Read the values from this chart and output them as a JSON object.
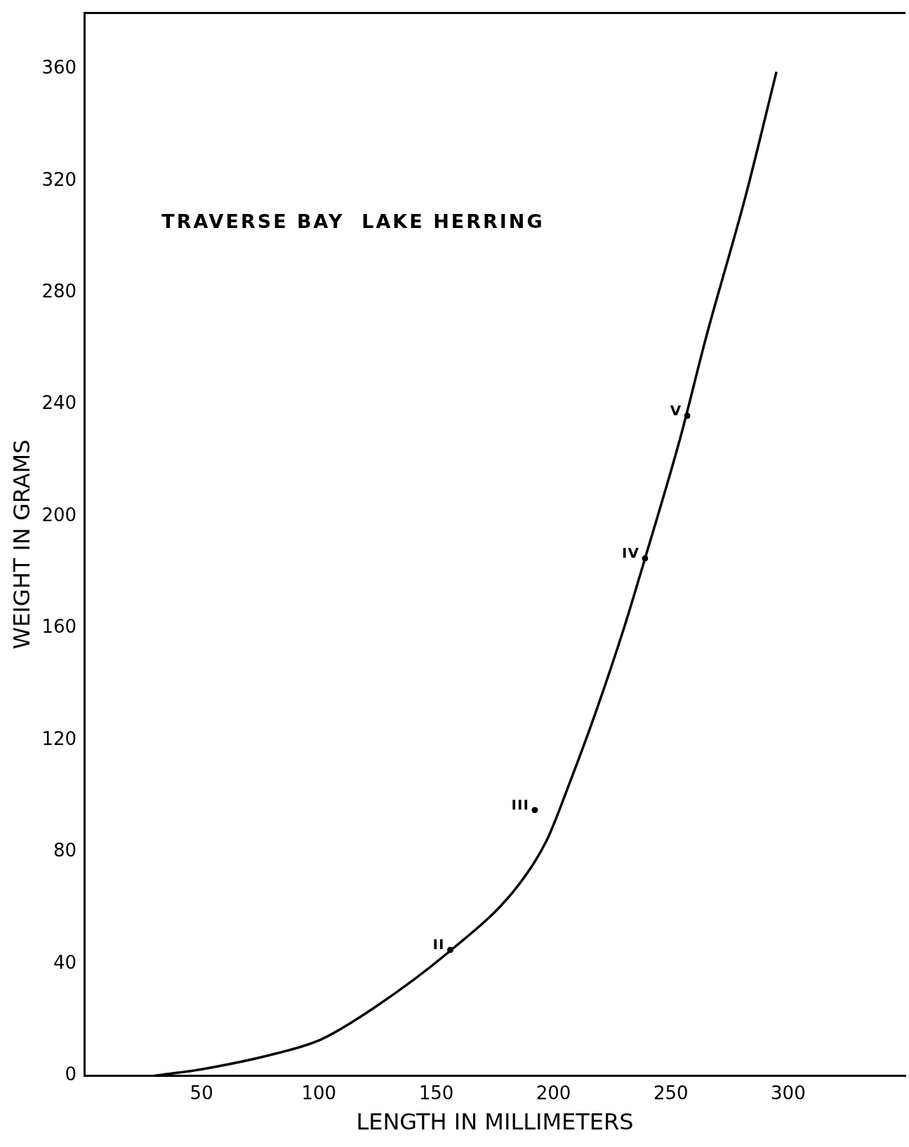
{
  "chart_data": {
    "type": "line",
    "xlabel": "LENGTH IN MILLIMETERS",
    "ylabel": "WEIGHT IN GRAMS",
    "xlim": [
      0,
      350
    ],
    "ylim": [
      0,
      380
    ],
    "xticks": [
      50,
      100,
      150,
      200,
      250,
      300
    ],
    "yticks": [
      0,
      40,
      80,
      120,
      160,
      200,
      240,
      280,
      320,
      360
    ],
    "grid": false,
    "legend": false,
    "annotations": [
      "TRAVERSE BAY  LAKE HERRING",
      {
        "text": "II",
        "x": 156,
        "y": 45
      },
      {
        "text": "III",
        "x": 192,
        "y": 95
      },
      {
        "text": "IV",
        "x": 239,
        "y": 185
      },
      {
        "text": "V",
        "x": 257,
        "y": 236
      }
    ],
    "series": [
      {
        "color": "#000000",
        "marker": "none",
        "x": [
          30,
          50,
          82,
          101,
          123,
          155,
          183,
          197,
          207,
          218,
          230,
          239,
          254,
          265,
          282,
          295
        ],
        "values": [
          0,
          2.3,
          8,
          13,
          24,
          44,
          66,
          84,
          105,
          130,
          160,
          185,
          228,
          264,
          315,
          359
        ]
      },
      {
        "type": "scatter",
        "color": "#000000",
        "marker": "circle",
        "x": [
          156,
          192,
          239,
          257
        ],
        "values": [
          45,
          95,
          185,
          236
        ]
      }
    ]
  }
}
